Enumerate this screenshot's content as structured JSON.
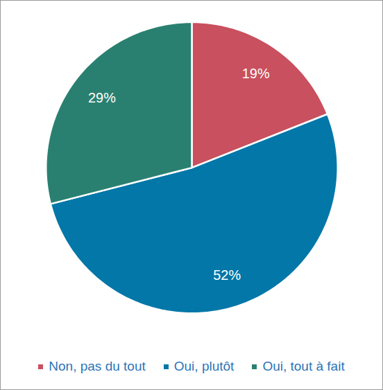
{
  "chart_data": {
    "type": "pie",
    "categories": [
      "Non, pas du tout",
      "Oui, plutôt",
      "Oui, tout à fait"
    ],
    "values": [
      19,
      52,
      29
    ],
    "value_labels": [
      "19%",
      "52%",
      "29%"
    ],
    "colors": [
      "#c9505e",
      "#0277a8",
      "#2a8070"
    ],
    "data_labels": true,
    "legend": "bottom",
    "tick_labels": false
  }
}
